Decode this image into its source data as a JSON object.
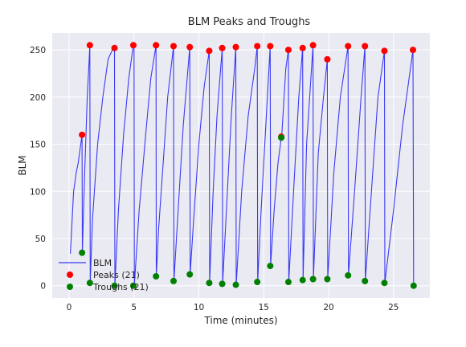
{
  "chart_data": {
    "type": "line",
    "title": "BLM Peaks and Troughs",
    "xlabel": "Time (minutes)",
    "ylabel": "BLM",
    "xlim": [
      -1.3,
      27.8
    ],
    "ylim": [
      -13,
      268
    ],
    "xticks": [
      0,
      5,
      10,
      15,
      20,
      25
    ],
    "yticks": [
      0,
      50,
      100,
      150,
      200,
      250
    ],
    "grid": true,
    "legend_position": "lower-left",
    "colors": {
      "background": "#eaeaf2",
      "grid": "#ffffff",
      "line": "#3a3af5",
      "peaks": "#ff0000",
      "troughs": "#008000"
    },
    "series": [
      {
        "name": "BLM",
        "kind": "line",
        "x": [
          0.1,
          0.2,
          0.35,
          0.45,
          0.55,
          0.7,
          0.85,
          1.0,
          1.02,
          1.05,
          1.2,
          1.4,
          1.55,
          1.6,
          1.63,
          1.8,
          2.2,
          2.6,
          3.0,
          3.4,
          3.5,
          3.53,
          3.8,
          4.2,
          4.6,
          4.95,
          5.0,
          5.03,
          5.4,
          5.9,
          6.3,
          6.7,
          6.72,
          6.9,
          7.3,
          7.6,
          8.05,
          8.08,
          8.4,
          8.8,
          9.3,
          9.33,
          9.6,
          10.0,
          10.4,
          10.8,
          10.83,
          11.1,
          11.4,
          11.8,
          11.83,
          12.2,
          12.5,
          12.85,
          12.88,
          13.3,
          13.8,
          14.3,
          14.5,
          14.53,
          14.8,
          15.2,
          15.5,
          15.53,
          15.8,
          16.1,
          16.35,
          16.38,
          16.7,
          16.9,
          16.93,
          17.3,
          17.7,
          18.0,
          18.03,
          18.3,
          18.8,
          18.83,
          19.2,
          19.6,
          19.9,
          19.93,
          20.4,
          20.9,
          21.5,
          21.53,
          22.0,
          22.5,
          22.8,
          22.83,
          23.3,
          23.8,
          24.3,
          24.33,
          25.0,
          25.7,
          26.3,
          26.5,
          26.55
        ],
        "y": [
          34,
          60,
          100,
          110,
          120,
          130,
          145,
          160,
          35,
          50,
          120,
          200,
          240,
          255,
          3,
          70,
          150,
          200,
          240,
          252,
          252,
          0,
          80,
          160,
          220,
          255,
          255,
          0,
          80,
          160,
          220,
          255,
          10,
          60,
          140,
          200,
          254,
          5,
          80,
          170,
          253,
          12,
          70,
          150,
          210,
          249,
          3,
          100,
          180,
          252,
          2,
          100,
          180,
          253,
          1,
          100,
          180,
          230,
          254,
          4,
          80,
          180,
          254,
          21,
          80,
          130,
          157,
          158,
          230,
          250,
          4,
          100,
          200,
          252,
          6,
          150,
          255,
          7,
          140,
          200,
          240,
          7,
          120,
          200,
          254,
          11,
          100,
          200,
          254,
          5,
          100,
          200,
          249,
          3,
          80,
          170,
          230,
          250,
          0
        ]
      },
      {
        "name": "Peaks (21)",
        "kind": "scatter",
        "x": [
          1.0,
          1.6,
          3.5,
          4.95,
          6.7,
          8.05,
          9.3,
          10.8,
          11.8,
          12.85,
          14.5,
          15.5,
          16.35,
          16.9,
          18.0,
          18.8,
          19.9,
          21.5,
          22.8,
          24.3,
          26.5
        ],
        "y": [
          160,
          255,
          252,
          255,
          255,
          254,
          253,
          249,
          252,
          253,
          254,
          254,
          158,
          250,
          252,
          255,
          240,
          254,
          254,
          249,
          250
        ]
      },
      {
        "name": "Troughs (21)",
        "kind": "scatter",
        "x": [
          1.0,
          1.6,
          3.5,
          4.95,
          6.7,
          8.05,
          9.3,
          10.8,
          11.8,
          12.85,
          14.5,
          15.5,
          16.35,
          16.9,
          18.0,
          18.8,
          19.9,
          21.5,
          22.8,
          24.3,
          26.55
        ],
        "y": [
          35,
          3,
          0,
          0,
          10,
          5,
          12,
          3,
          2,
          1,
          4,
          21,
          157,
          4,
          6,
          7,
          7,
          11,
          5,
          3,
          0
        ]
      }
    ]
  }
}
